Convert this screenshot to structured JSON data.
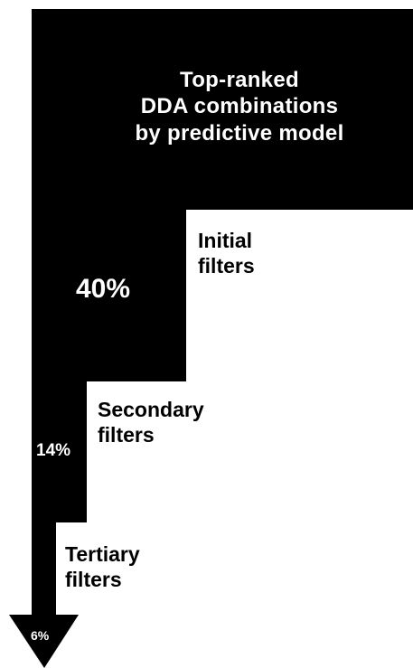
{
  "title": {
    "lines": [
      "Top-ranked",
      "DDA combinations",
      "by predictive model"
    ]
  },
  "stages": [
    {
      "lines": [
        "Initial",
        "filters"
      ],
      "percent": "40%"
    },
    {
      "lines": [
        "Secondary",
        "filters"
      ],
      "percent": "14%"
    },
    {
      "lines": [
        "Tertiary",
        "filters"
      ],
      "percent": "6%"
    }
  ],
  "colors": {
    "funnel": "#000000",
    "background": "#ffffff",
    "text_on_funnel": "#ffffff",
    "text_on_background": "#000000"
  }
}
